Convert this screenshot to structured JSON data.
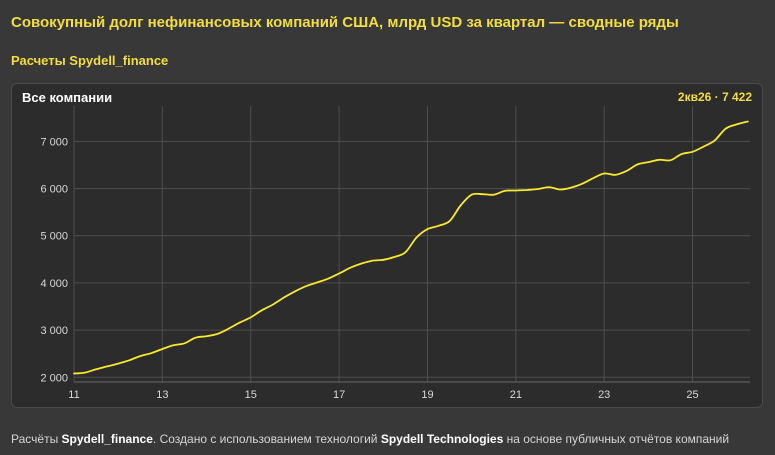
{
  "header": {
    "title": "Совокупный долг нефинансовых компаний США, млрд USD за квартал — сводные ряды",
    "subtitle": "Расчеты Spydell_finance"
  },
  "panel": {
    "title": "Все компании",
    "last_value_label": "2кв26 · 7 422"
  },
  "footer": {
    "prefix": "Расчёты ",
    "brand": "Spydell_finance",
    "middle": ". Создано с использованием технологий ",
    "tech": "Spydell Technologies",
    "suffix": " на основе публичных отчётов компаний"
  },
  "colors": {
    "accent": "#f2de3c",
    "line": "#f7ea2a",
    "background": "#383838",
    "panel": "#2c2c2c",
    "grid": "#4e4e4e"
  },
  "chart_data": {
    "type": "line",
    "title": "Совокупный долг нефинансовых компаний США, млрд USD за квартал — сводные ряды",
    "subtitle": "Расчеты Spydell_finance",
    "xlabel": "",
    "ylabel": "",
    "xlim": [
      11,
      26.3
    ],
    "ylim": [
      1900,
      7750
    ],
    "x_ticks": [
      11,
      13,
      15,
      17,
      19,
      21,
      23,
      25
    ],
    "x_tick_labels": [
      "11",
      "13",
      "15",
      "17",
      "19",
      "21",
      "23",
      "25"
    ],
    "y_ticks": [
      2000,
      3000,
      4000,
      5000,
      6000,
      7000
    ],
    "y_tick_labels": [
      "2 000",
      "3 000",
      "4 000",
      "5 000",
      "6 000",
      "7 000"
    ],
    "grid": true,
    "legend": "none",
    "series": [
      {
        "name": "Все компании",
        "x": [
          11.0,
          11.25,
          11.5,
          11.75,
          12.0,
          12.25,
          12.5,
          12.75,
          13.0,
          13.25,
          13.5,
          13.75,
          14.0,
          14.25,
          14.5,
          14.75,
          15.0,
          15.25,
          15.5,
          15.75,
          16.0,
          16.25,
          16.5,
          16.75,
          17.0,
          17.25,
          17.5,
          17.75,
          18.0,
          18.25,
          18.5,
          18.75,
          19.0,
          19.25,
          19.5,
          19.75,
          20.0,
          20.25,
          20.5,
          20.75,
          21.0,
          21.25,
          21.5,
          21.75,
          22.0,
          22.25,
          22.5,
          22.75,
          23.0,
          23.25,
          23.5,
          23.75,
          24.0,
          24.25,
          24.5,
          24.75,
          25.0,
          25.25,
          25.5,
          25.75,
          26.0,
          26.25
        ],
        "values": [
          2080,
          2100,
          2170,
          2230,
          2290,
          2360,
          2450,
          2510,
          2600,
          2680,
          2720,
          2840,
          2870,
          2920,
          3030,
          3160,
          3270,
          3420,
          3540,
          3690,
          3820,
          3930,
          4010,
          4090,
          4200,
          4320,
          4410,
          4470,
          4490,
          4550,
          4650,
          4960,
          5140,
          5210,
          5310,
          5640,
          5870,
          5880,
          5870,
          5950,
          5960,
          5970,
          5990,
          6030,
          5980,
          6020,
          6100,
          6220,
          6320,
          6290,
          6370,
          6510,
          6560,
          6610,
          6600,
          6730,
          6780,
          6890,
          7020,
          7270,
          7360,
          7422
        ]
      }
    ]
  }
}
